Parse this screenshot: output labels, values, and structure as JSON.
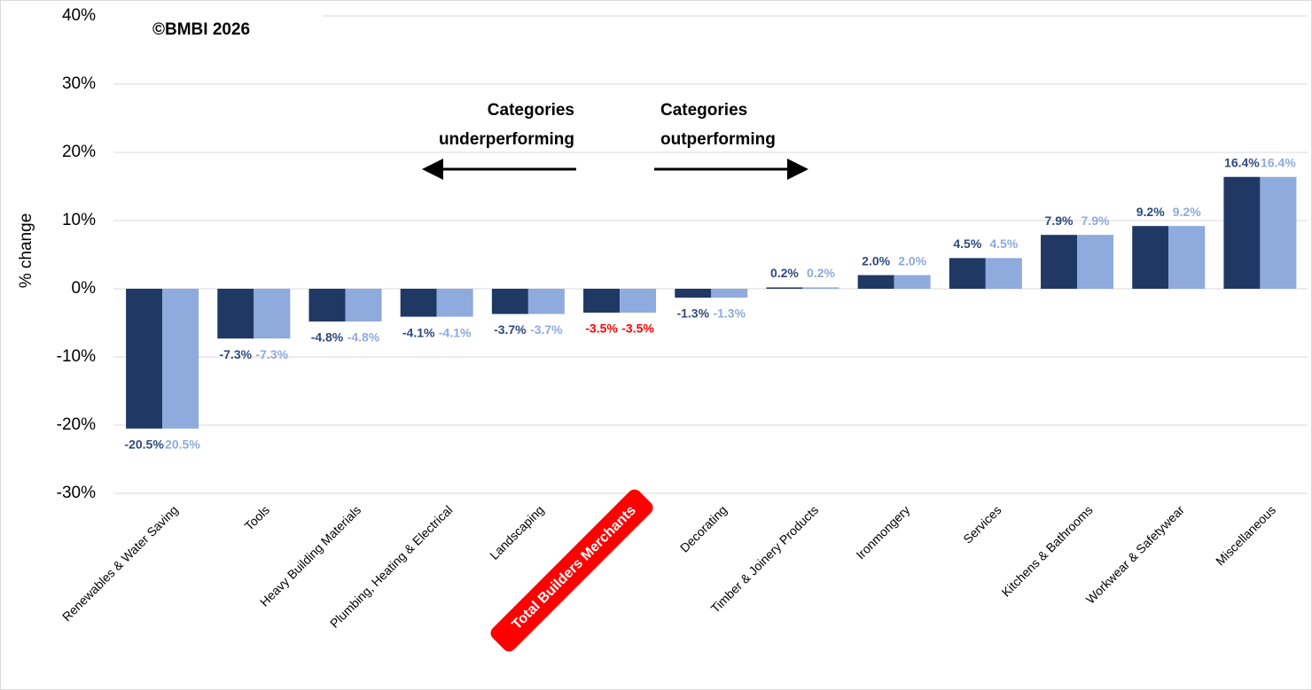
{
  "chart_data": {
    "type": "bar",
    "y_label": "% change",
    "annotations": [
      {
        "lines": [
          "©BMBI 2026"
        ]
      },
      {
        "lines": [
          "Categories",
          "underperforming"
        ]
      },
      {
        "lines": [
          "Categories",
          "outperforming"
        ]
      }
    ],
    "categories": [
      "Renewables & Water Saving",
      "Tools",
      "Heavy Building Materials",
      "Plumbing, Heating & Electrical",
      "Landscaping",
      "Total Builders Merchants",
      "Decorating",
      "Timber & Joinery Products",
      "Ironmongery",
      "Services",
      "Kitchens & Bathrooms",
      "Workwear & Safetywear",
      "Miscellaneous"
    ],
    "series": [
      {
        "color": "#203864",
        "label_color": "#2f4a7e",
        "values": [
          -20.5,
          -7.3,
          -4.8,
          -4.1,
          -3.7,
          -3.5,
          -1.3,
          0.2,
          2.0,
          4.5,
          7.9,
          9.2,
          16.4
        ],
        "value_labels": [
          "-20.5%",
          "-7.3%",
          "-4.8%",
          "-4.1%",
          "-3.7%",
          "-3.5%",
          "-1.3%",
          "0.2%",
          "2.0%",
          "4.5%",
          "7.9%",
          "9.2%",
          "16.4%"
        ]
      },
      {
        "color": "#8faadc",
        "label_color": "#8faadc",
        "values": [
          -20.5,
          -7.3,
          -4.8,
          -4.1,
          -3.7,
          -3.5,
          -1.3,
          0.2,
          2.0,
          4.5,
          7.9,
          9.2,
          16.4
        ],
        "value_labels": [
          "-20.5%",
          "-7.3%",
          "-4.8%",
          "-4.1%",
          "-3.7%",
          "-3.5%",
          "-1.3%",
          "0.2%",
          "2.0%",
          "4.5%",
          "7.9%",
          "9.2%",
          "16.4%"
        ]
      }
    ],
    "highlight": {
      "index": 5,
      "color": "#ff0000"
    },
    "ylim": [
      -30,
      40
    ],
    "yticks": [
      {
        "value": -30,
        "label": "-30%"
      },
      {
        "value": -20,
        "label": "-20%"
      },
      {
        "value": -10,
        "label": "-10%"
      },
      {
        "value": 0,
        "label": "0%"
      },
      {
        "value": 10,
        "label": "10%"
      },
      {
        "value": 20,
        "label": "20%"
      },
      {
        "value": 30,
        "label": "30%"
      },
      {
        "value": 40,
        "label": "40%"
      }
    ],
    "grid": true
  }
}
